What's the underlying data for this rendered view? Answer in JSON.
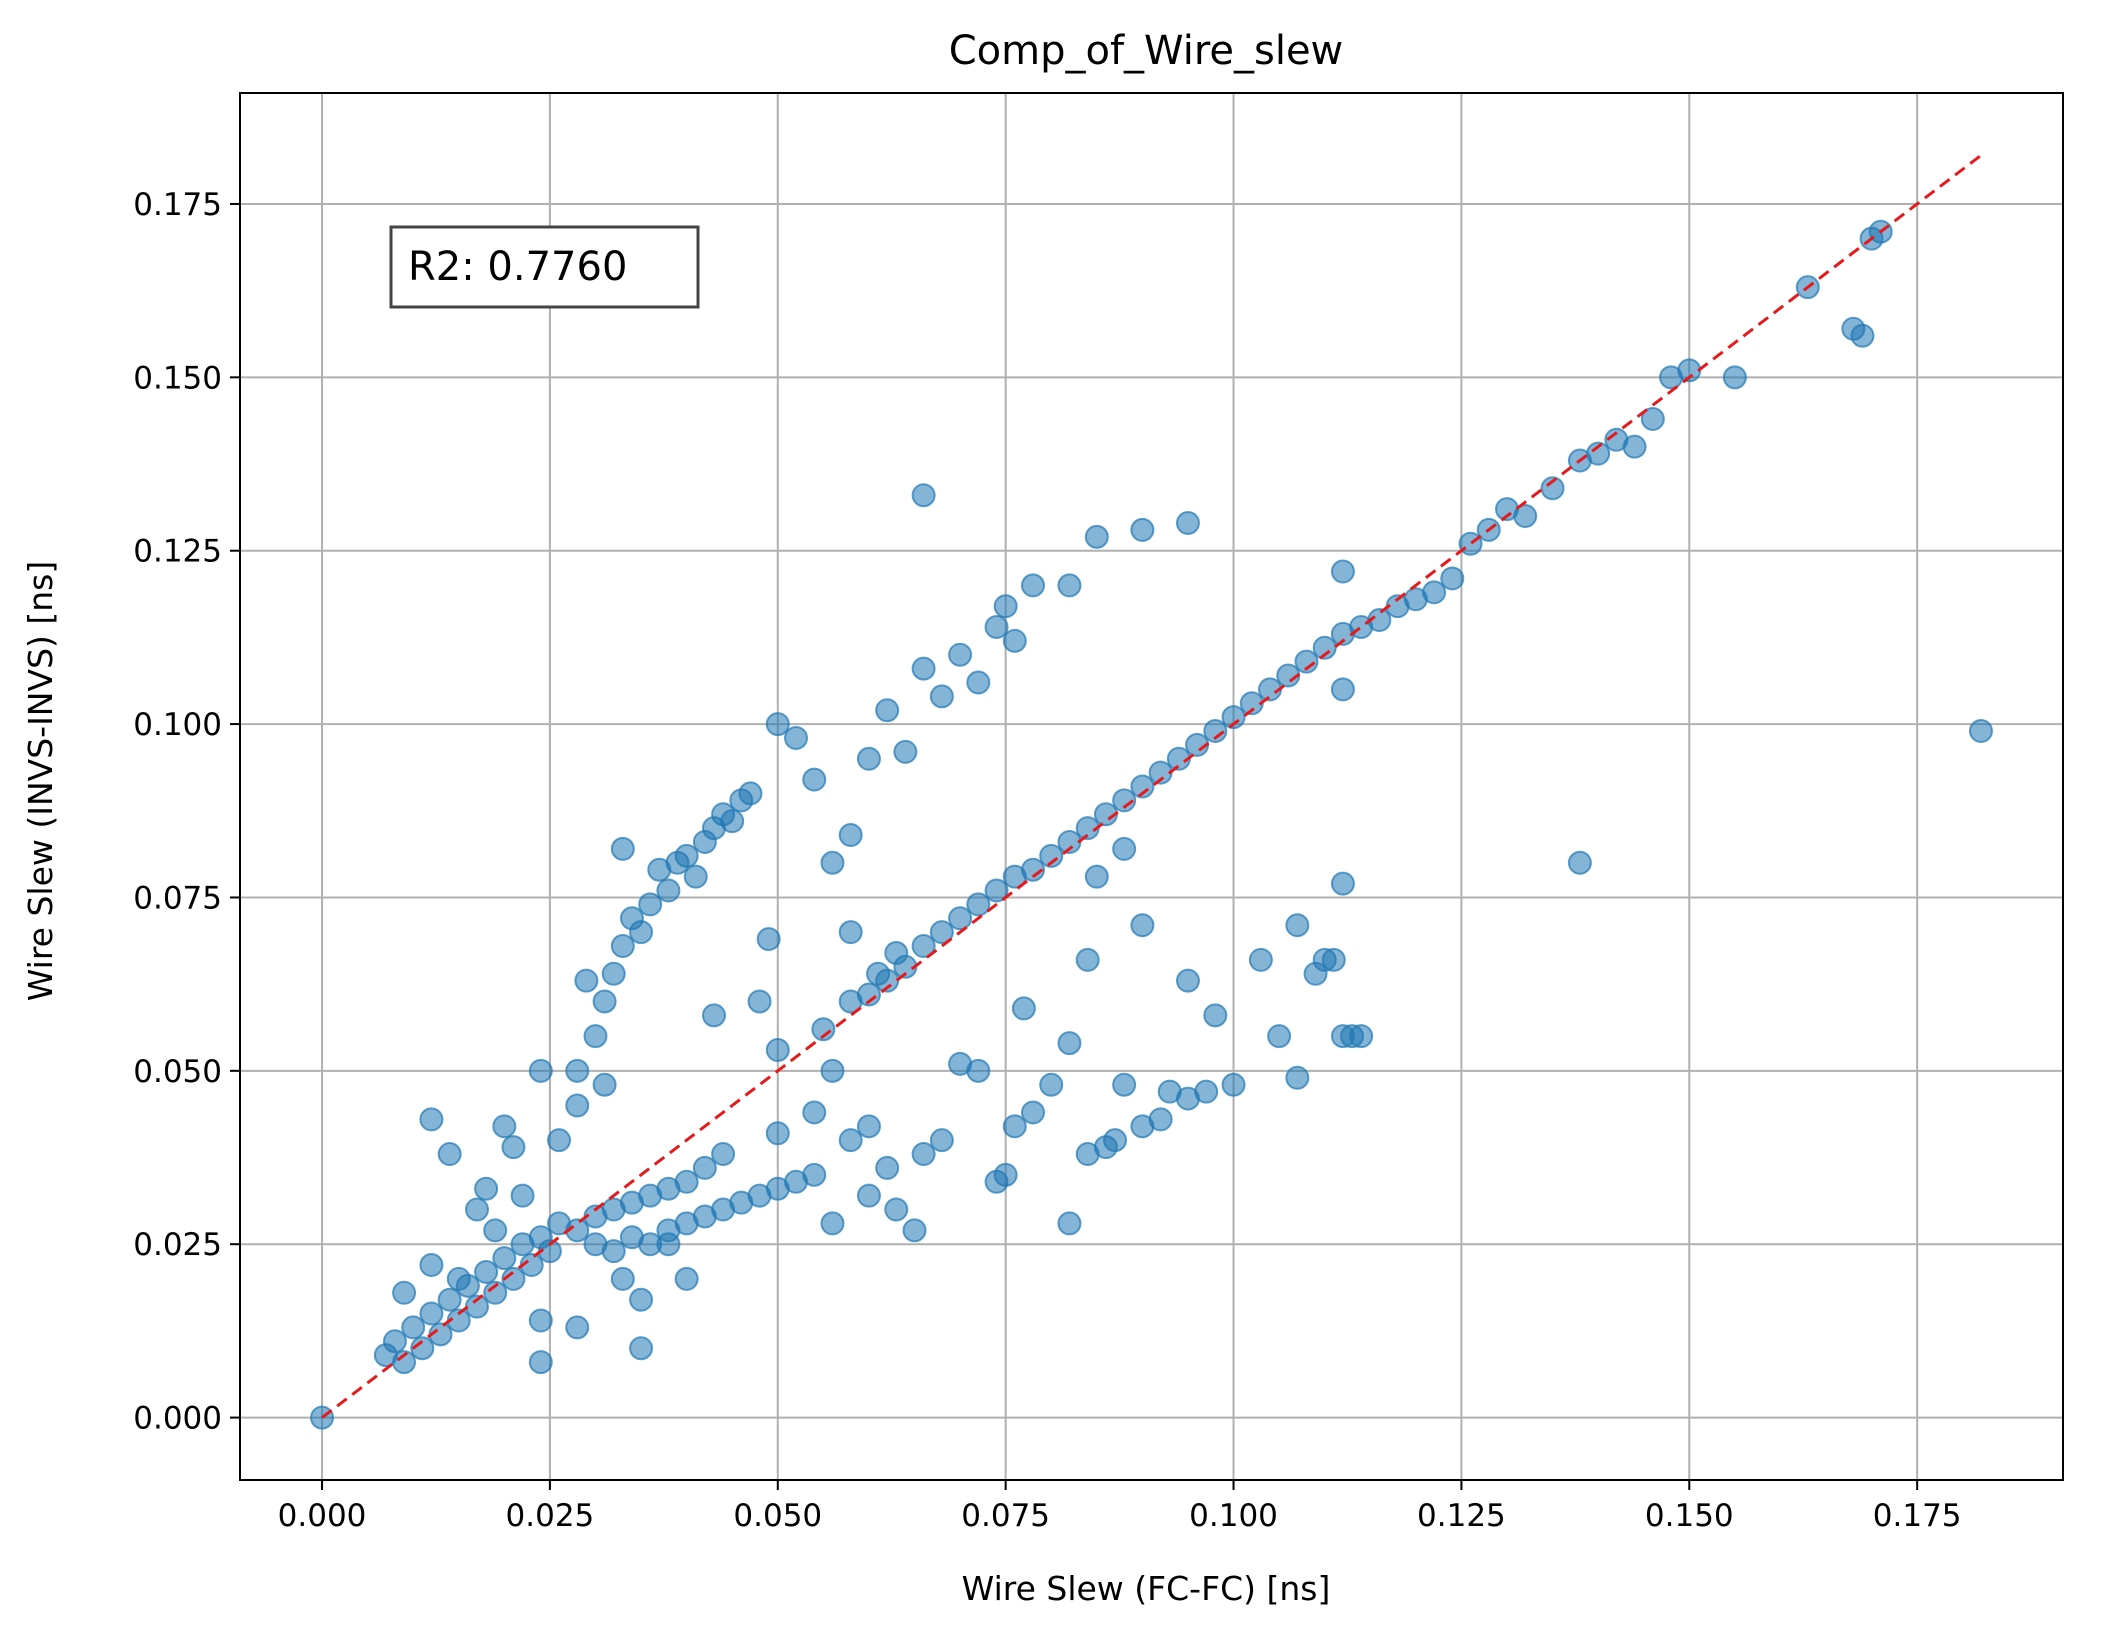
{
  "chart_data": {
    "type": "scatter",
    "title": "Comp_of_Wire_slew",
    "xlabel": "Wire Slew (FC-FC) [ns]",
    "ylabel": "Wire Slew (INVS-INVS) [ns]",
    "xlim": [
      -0.009,
      0.191
    ],
    "ylim": [
      -0.009,
      0.191
    ],
    "xticks": [
      "0.000",
      "0.025",
      "0.050",
      "0.075",
      "0.100",
      "0.125",
      "0.150",
      "0.175"
    ],
    "yticks": [
      "0.000",
      "0.025",
      "0.050",
      "0.075",
      "0.100",
      "0.125",
      "0.150",
      "0.175"
    ],
    "grid": true,
    "annotation": "R2: 0.7760",
    "marker_color": "#1f77b4",
    "reference_line": {
      "style": "dashed",
      "color": "#e41a1c",
      "x": [
        0.0,
        0.182
      ],
      "y": [
        0.0,
        0.182
      ]
    },
    "points": [
      [
        0.0,
        0.0
      ],
      [
        0.007,
        0.009
      ],
      [
        0.008,
        0.011
      ],
      [
        0.009,
        0.008
      ],
      [
        0.01,
        0.013
      ],
      [
        0.011,
        0.01
      ],
      [
        0.012,
        0.015
      ],
      [
        0.013,
        0.012
      ],
      [
        0.014,
        0.017
      ],
      [
        0.015,
        0.014
      ],
      [
        0.016,
        0.019
      ],
      [
        0.017,
        0.016
      ],
      [
        0.018,
        0.021
      ],
      [
        0.019,
        0.018
      ],
      [
        0.02,
        0.023
      ],
      [
        0.021,
        0.02
      ],
      [
        0.022,
        0.025
      ],
      [
        0.023,
        0.022
      ],
      [
        0.024,
        0.026
      ],
      [
        0.025,
        0.024
      ],
      [
        0.009,
        0.018
      ],
      [
        0.012,
        0.022
      ],
      [
        0.015,
        0.02
      ],
      [
        0.018,
        0.033
      ],
      [
        0.019,
        0.027
      ],
      [
        0.02,
        0.042
      ],
      [
        0.021,
        0.039
      ],
      [
        0.022,
        0.032
      ],
      [
        0.024,
        0.014
      ],
      [
        0.024,
        0.008
      ],
      [
        0.026,
        0.028
      ],
      [
        0.028,
        0.027
      ],
      [
        0.03,
        0.029
      ],
      [
        0.032,
        0.03
      ],
      [
        0.034,
        0.031
      ],
      [
        0.036,
        0.032
      ],
      [
        0.038,
        0.033
      ],
      [
        0.04,
        0.034
      ],
      [
        0.042,
        0.036
      ],
      [
        0.044,
        0.038
      ],
      [
        0.03,
        0.025
      ],
      [
        0.032,
        0.024
      ],
      [
        0.034,
        0.026
      ],
      [
        0.036,
        0.025
      ],
      [
        0.038,
        0.027
      ],
      [
        0.04,
        0.028
      ],
      [
        0.042,
        0.029
      ],
      [
        0.044,
        0.03
      ],
      [
        0.046,
        0.031
      ],
      [
        0.048,
        0.032
      ],
      [
        0.05,
        0.033
      ],
      [
        0.052,
        0.034
      ],
      [
        0.054,
        0.035
      ],
      [
        0.04,
        0.02
      ],
      [
        0.038,
        0.025
      ],
      [
        0.056,
        0.028
      ],
      [
        0.028,
        0.05
      ],
      [
        0.029,
        0.063
      ],
      [
        0.03,
        0.055
      ],
      [
        0.031,
        0.06
      ],
      [
        0.032,
        0.064
      ],
      [
        0.033,
        0.068
      ],
      [
        0.034,
        0.072
      ],
      [
        0.035,
        0.07
      ],
      [
        0.036,
        0.074
      ],
      [
        0.037,
        0.079
      ],
      [
        0.038,
        0.076
      ],
      [
        0.039,
        0.08
      ],
      [
        0.04,
        0.081
      ],
      [
        0.041,
        0.078
      ],
      [
        0.042,
        0.083
      ],
      [
        0.043,
        0.085
      ],
      [
        0.044,
        0.087
      ],
      [
        0.045,
        0.086
      ],
      [
        0.046,
        0.089
      ],
      [
        0.047,
        0.09
      ],
      [
        0.033,
        0.082
      ],
      [
        0.043,
        0.058
      ],
      [
        0.048,
        0.06
      ],
      [
        0.049,
        0.069
      ],
      [
        0.05,
        0.053
      ],
      [
        0.05,
        0.1
      ],
      [
        0.052,
        0.098
      ],
      [
        0.054,
        0.092
      ],
      [
        0.056,
        0.08
      ],
      [
        0.058,
        0.084
      ],
      [
        0.06,
        0.095
      ],
      [
        0.062,
        0.102
      ],
      [
        0.064,
        0.096
      ],
      [
        0.066,
        0.108
      ],
      [
        0.068,
        0.104
      ],
      [
        0.07,
        0.11
      ],
      [
        0.072,
        0.106
      ],
      [
        0.074,
        0.114
      ],
      [
        0.075,
        0.117
      ],
      [
        0.076,
        0.112
      ],
      [
        0.078,
        0.12
      ],
      [
        0.082,
        0.12
      ],
      [
        0.085,
        0.127
      ],
      [
        0.09,
        0.128
      ],
      [
        0.095,
        0.129
      ],
      [
        0.055,
        0.056
      ],
      [
        0.058,
        0.06
      ],
      [
        0.06,
        0.061
      ],
      [
        0.062,
        0.063
      ],
      [
        0.064,
        0.065
      ],
      [
        0.066,
        0.068
      ],
      [
        0.068,
        0.07
      ],
      [
        0.07,
        0.072
      ],
      [
        0.072,
        0.074
      ],
      [
        0.074,
        0.076
      ],
      [
        0.076,
        0.078
      ],
      [
        0.078,
        0.079
      ],
      [
        0.08,
        0.081
      ],
      [
        0.082,
        0.083
      ],
      [
        0.084,
        0.085
      ],
      [
        0.086,
        0.087
      ],
      [
        0.088,
        0.089
      ],
      [
        0.09,
        0.091
      ],
      [
        0.092,
        0.093
      ],
      [
        0.094,
        0.095
      ],
      [
        0.096,
        0.097
      ],
      [
        0.098,
        0.099
      ],
      [
        0.1,
        0.101
      ],
      [
        0.102,
        0.103
      ],
      [
        0.104,
        0.105
      ],
      [
        0.106,
        0.107
      ],
      [
        0.108,
        0.109
      ],
      [
        0.11,
        0.111
      ],
      [
        0.112,
        0.113
      ],
      [
        0.114,
        0.114
      ],
      [
        0.116,
        0.115
      ],
      [
        0.118,
        0.117
      ],
      [
        0.12,
        0.118
      ],
      [
        0.122,
        0.119
      ],
      [
        0.124,
        0.121
      ],
      [
        0.126,
        0.126
      ],
      [
        0.128,
        0.128
      ],
      [
        0.13,
        0.131
      ],
      [
        0.132,
        0.13
      ],
      [
        0.135,
        0.134
      ],
      [
        0.138,
        0.138
      ],
      [
        0.14,
        0.139
      ],
      [
        0.142,
        0.141
      ],
      [
        0.144,
        0.14
      ],
      [
        0.146,
        0.144
      ],
      [
        0.148,
        0.15
      ],
      [
        0.15,
        0.151
      ],
      [
        0.155,
        0.15
      ],
      [
        0.163,
        0.163
      ],
      [
        0.168,
        0.157
      ],
      [
        0.169,
        0.156
      ],
      [
        0.171,
        0.171
      ],
      [
        0.17,
        0.17
      ],
      [
        0.085,
        0.078
      ],
      [
        0.088,
        0.082
      ],
      [
        0.112,
        0.122
      ],
      [
        0.112,
        0.105
      ],
      [
        0.066,
        0.133
      ],
      [
        0.138,
        0.08
      ],
      [
        0.182,
        0.099
      ],
      [
        0.074,
        0.034
      ],
      [
        0.075,
        0.035
      ],
      [
        0.076,
        0.042
      ],
      [
        0.078,
        0.044
      ],
      [
        0.08,
        0.048
      ],
      [
        0.084,
        0.038
      ],
      [
        0.086,
        0.039
      ],
      [
        0.087,
        0.04
      ],
      [
        0.088,
        0.048
      ],
      [
        0.09,
        0.042
      ],
      [
        0.092,
        0.043
      ],
      [
        0.093,
        0.047
      ],
      [
        0.095,
        0.046
      ],
      [
        0.097,
        0.047
      ],
      [
        0.1,
        0.048
      ],
      [
        0.107,
        0.049
      ],
      [
        0.109,
        0.064
      ],
      [
        0.11,
        0.066
      ],
      [
        0.111,
        0.066
      ],
      [
        0.112,
        0.055
      ],
      [
        0.113,
        0.055
      ],
      [
        0.114,
        0.055
      ],
      [
        0.112,
        0.077
      ],
      [
        0.107,
        0.071
      ],
      [
        0.098,
        0.058
      ],
      [
        0.103,
        0.066
      ],
      [
        0.105,
        0.055
      ],
      [
        0.058,
        0.04
      ],
      [
        0.06,
        0.042
      ],
      [
        0.062,
        0.036
      ],
      [
        0.066,
        0.038
      ],
      [
        0.068,
        0.04
      ],
      [
        0.07,
        0.051
      ],
      [
        0.072,
        0.05
      ],
      [
        0.077,
        0.059
      ],
      [
        0.084,
        0.066
      ],
      [
        0.095,
        0.063
      ],
      [
        0.09,
        0.071
      ],
      [
        0.082,
        0.054
      ],
      [
        0.082,
        0.028
      ],
      [
        0.06,
        0.032
      ],
      [
        0.063,
        0.03
      ],
      [
        0.065,
        0.027
      ],
      [
        0.05,
        0.041
      ],
      [
        0.054,
        0.044
      ],
      [
        0.056,
        0.05
      ],
      [
        0.058,
        0.07
      ],
      [
        0.061,
        0.064
      ],
      [
        0.063,
        0.067
      ],
      [
        0.026,
        0.04
      ],
      [
        0.028,
        0.045
      ],
      [
        0.031,
        0.048
      ],
      [
        0.017,
        0.03
      ],
      [
        0.014,
        0.038
      ],
      [
        0.012,
        0.043
      ],
      [
        0.024,
        0.05
      ],
      [
        0.033,
        0.02
      ],
      [
        0.035,
        0.017
      ],
      [
        0.035,
        0.01
      ],
      [
        0.028,
        0.013
      ]
    ]
  }
}
